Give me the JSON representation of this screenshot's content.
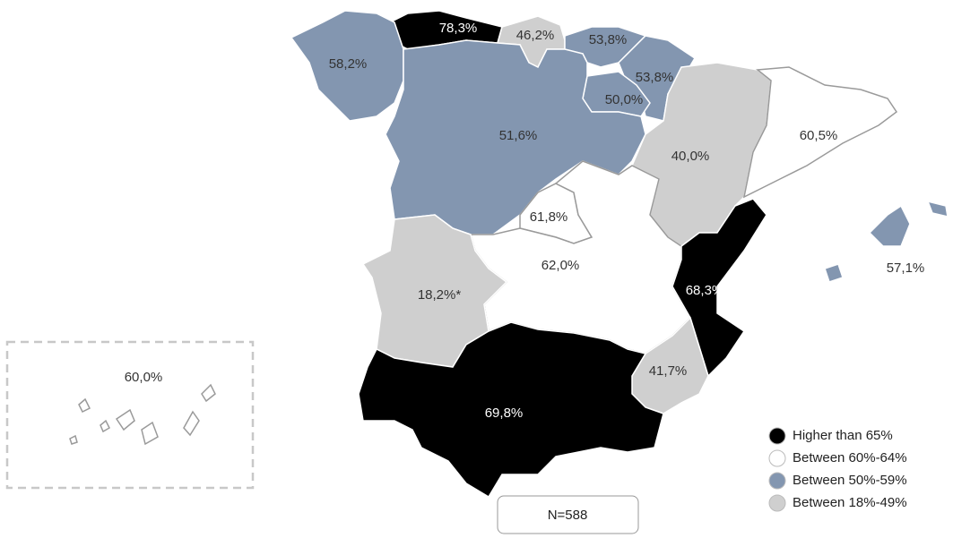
{
  "regions": [
    {
      "label": "78,3%",
      "color": "#000000"
    },
    {
      "label": "46,2%",
      "color": "#cfcfcf"
    },
    {
      "label": "53,8%",
      "color": "#8396b0"
    },
    {
      "label": "53,8%",
      "color": "#8396b0"
    },
    {
      "label": "50,0%",
      "color": "#8396b0"
    },
    {
      "label": "58,2%",
      "color": "#8396b0"
    },
    {
      "label": "51,6%",
      "color": "#8396b0"
    },
    {
      "label": "40,0%",
      "color": "#cfcfcf"
    },
    {
      "label": "60,5%",
      "color": "#ffffff"
    },
    {
      "label": "61,8%",
      "color": "#ffffff"
    },
    {
      "label": "62,0%",
      "color": "#ffffff"
    },
    {
      "label": "68,3%",
      "color": "#000000"
    },
    {
      "label": "18,2%*",
      "color": "#cfcfcf"
    },
    {
      "label": "41,7%",
      "color": "#cfcfcf"
    },
    {
      "label": "69,8%",
      "color": "#000000"
    },
    {
      "label": "57,1%",
      "color": "#8396b0"
    },
    {
      "label": "60,0%",
      "color": "#ffffff"
    }
  ],
  "legend": [
    {
      "label": "Higher than 65%",
      "color": "#000000"
    },
    {
      "label": "Between 60%-64%",
      "color": "#ffffff"
    },
    {
      "label": "Between 50%-59%",
      "color": "#8396b0"
    },
    {
      "label": "Between 18%-49%",
      "color": "#cfcfcf"
    }
  ],
  "note": "N=588"
}
